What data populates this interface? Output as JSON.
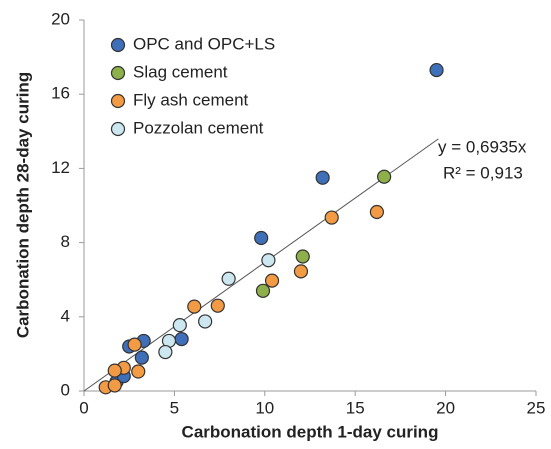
{
  "chart_data": {
    "type": "scatter",
    "x_label": "Carbonation depth 1-day curing",
    "y_label": "Carbonation depth 28-day curing",
    "xlim": [
      0,
      25
    ],
    "xticks": [
      0,
      5,
      10,
      15,
      20,
      25
    ],
    "ylim": [
      0,
      20
    ],
    "yticks": [
      0,
      4,
      8,
      12,
      16,
      20
    ],
    "legend": "top-left",
    "series": [
      {
        "name": "OPC and OPC+LS",
        "color": "#3f6fb8",
        "x": [
          19.5,
          13.2,
          9.8,
          5.4,
          3.3,
          3.2,
          2.5,
          1.8,
          2.2
        ],
        "values": [
          17.3,
          11.5,
          8.25,
          2.8,
          2.7,
          1.8,
          2.4,
          0.5,
          0.8
        ]
      },
      {
        "name": "Slag cement",
        "color": "#8db04a",
        "x": [
          16.6,
          12.1,
          9.9
        ],
        "values": [
          11.55,
          7.25,
          5.4
        ]
      },
      {
        "name": "Fly ash cement",
        "color": "#f39a45",
        "x": [
          16.2,
          13.7,
          12.0,
          10.4,
          7.4,
          6.1,
          2.8,
          2.2,
          3.0,
          1.7,
          1.2,
          1.7
        ],
        "values": [
          9.65,
          9.35,
          6.45,
          5.95,
          4.6,
          4.55,
          2.5,
          1.25,
          1.05,
          1.1,
          0.2,
          0.3
        ]
      },
      {
        "name": "Pozzolan cement",
        "color": "#cde7f1",
        "x": [
          10.2,
          8.0,
          6.7,
          5.3,
          4.7,
          4.5
        ],
        "values": [
          7.05,
          6.05,
          3.75,
          3.55,
          2.7,
          2.1
        ]
      }
    ],
    "trendline": {
      "slope": 0.6935,
      "x": [
        0,
        19.6
      ],
      "label": "y = 0,6935x",
      "r2": "R² = 0,913"
    }
  }
}
